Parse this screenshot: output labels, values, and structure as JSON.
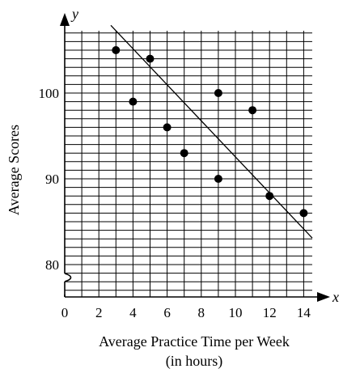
{
  "chart_data": {
    "type": "scatter",
    "title": "",
    "xlabel": "Average Practice Time per Week",
    "xlabel_line2": "(in hours)",
    "ylabel": "Average Scores",
    "x_axis_var": "x",
    "y_axis_var": "y",
    "xlim": [
      0,
      14.5
    ],
    "ylim": [
      76,
      108
    ],
    "x_ticks": [
      "0",
      "2",
      "4",
      "6",
      "8",
      "10",
      "12",
      "14"
    ],
    "y_ticks": [
      "80",
      "90",
      "100"
    ],
    "y_axis_break": true,
    "grid": true,
    "points": [
      {
        "x": 3,
        "y": 105
      },
      {
        "x": 4,
        "y": 99
      },
      {
        "x": 5,
        "y": 104
      },
      {
        "x": 6,
        "y": 96
      },
      {
        "x": 7,
        "y": 93
      },
      {
        "x": 9,
        "y": 100
      },
      {
        "x": 9,
        "y": 90
      },
      {
        "x": 11,
        "y": 98
      },
      {
        "x": 12,
        "y": 88
      },
      {
        "x": 14,
        "y": 86
      }
    ],
    "line_of_best_fit": {
      "x1": 2.7,
      "y1": 107.9,
      "x2": 14.5,
      "y2": 83.1
    }
  }
}
